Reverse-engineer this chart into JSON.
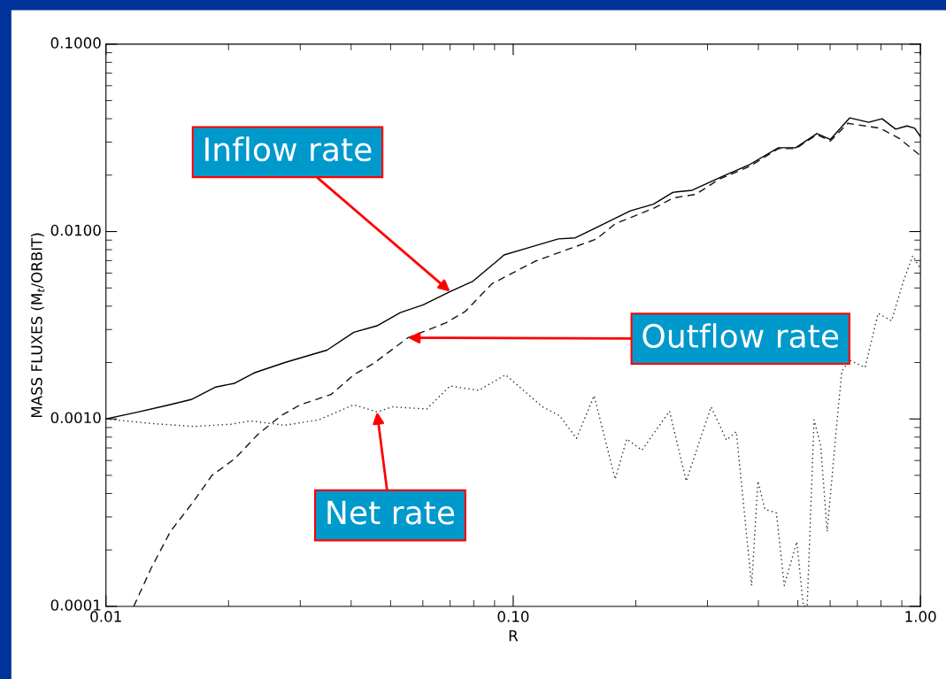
{
  "chart_data": {
    "type": "line",
    "xlabel": "R",
    "ylabel": "MASS FLUXES (M$_{t}$/ORBIT)",
    "log": "xy",
    "grid": false,
    "xlim": [
      0.01,
      1.0
    ],
    "ylim": [
      0.0001,
      0.1
    ],
    "xticks": [
      0.01,
      {
        "value": 0.1,
        "label": "0.10"
      },
      {
        "value": 1.0,
        "label": "1.00"
      }
    ],
    "yticks": [
      {
        "value": 0.0001,
        "label": "0.0001"
      },
      {
        "value": 0.001,
        "label": "0.0010"
      },
      {
        "value": 0.01,
        "label": "0.0100"
      },
      {
        "value": 0.1,
        "label": "0.1000"
      }
    ],
    "series": [
      {
        "color": "#000000",
        "line_style": "solid",
        "x": [
          0.01,
          0.0118,
          0.0141,
          0.0162,
          0.0186,
          0.0207,
          0.0231,
          0.0275,
          0.0349,
          0.0406,
          0.0463,
          0.0528,
          0.0601,
          0.07,
          0.0797,
          0.0927,
          0.0949,
          0.108,
          0.129,
          0.142,
          0.16,
          0.194,
          0.221,
          0.247,
          0.275,
          0.327,
          0.381,
          0.448,
          0.494,
          0.557,
          0.601,
          0.67,
          0.746,
          0.805,
          0.869,
          0.927,
          0.968,
          1.0
        ],
        "values": [
          0.001,
          0.00108,
          0.00118,
          0.00127,
          0.00148,
          0.00155,
          0.00176,
          0.002,
          0.00233,
          0.0029,
          0.00314,
          0.00369,
          0.00406,
          0.00478,
          0.00544,
          0.00716,
          0.0075,
          0.00815,
          0.00913,
          0.00925,
          0.0105,
          0.0129,
          0.014,
          0.0162,
          0.0166,
          0.0197,
          0.0228,
          0.028,
          0.028,
          0.0333,
          0.031,
          0.0404,
          0.0383,
          0.04,
          0.0352,
          0.0366,
          0.0356,
          0.0321
        ]
      },
      {
        "color": "#151515",
        "line_style": "dashed",
        "x": [
          0.0117,
          0.0129,
          0.0144,
          0.0164,
          0.0182,
          0.0207,
          0.0236,
          0.0269,
          0.03,
          0.0357,
          0.0406,
          0.0453,
          0.0551,
          0.0684,
          0.0762,
          0.0887,
          0.103,
          0.113,
          0.16,
          0.178,
          0.221,
          0.247,
          0.281,
          0.32,
          0.381,
          0.448,
          0.494,
          0.557,
          0.601,
          0.663,
          0.731,
          0.796,
          0.887,
          1.0
        ],
        "values": [
          0.0001,
          0.000159,
          0.000251,
          0.000362,
          0.000499,
          0.000613,
          0.000826,
          0.00104,
          0.00119,
          0.00135,
          0.00172,
          0.00197,
          0.00271,
          0.00326,
          0.00374,
          0.00527,
          0.00624,
          0.00693,
          0.00912,
          0.011,
          0.0133,
          0.0151,
          0.0158,
          0.019,
          0.0223,
          0.0277,
          0.0277,
          0.0329,
          0.0304,
          0.0378,
          0.0366,
          0.0356,
          0.0314,
          0.0254
        ]
      },
      {
        "color": "#2a2a2a",
        "line_style": "dotted",
        "x": [
          0.01,
          0.0129,
          0.0164,
          0.0203,
          0.0226,
          0.0275,
          0.0334,
          0.0406,
          0.0463,
          0.0505,
          0.0613,
          0.07,
          0.0822,
          0.0958,
          0.118,
          0.13,
          0.143,
          0.158,
          0.178,
          0.19,
          0.207,
          0.242,
          0.266,
          0.306,
          0.334,
          0.353,
          0.385,
          0.399,
          0.415,
          0.443,
          0.463,
          0.497,
          0.516,
          0.527,
          0.548,
          0.569,
          0.59,
          0.621,
          0.641,
          0.67,
          0.731,
          0.787,
          0.849,
          0.907,
          0.957,
          1.0
        ],
        "values": [
          0.001,
          0.000946,
          0.000912,
          0.000937,
          0.000977,
          0.000925,
          0.000991,
          0.00119,
          0.00109,
          0.00116,
          0.00113,
          0.0015,
          0.00142,
          0.00172,
          0.00116,
          0.00104,
          0.000788,
          0.00133,
          0.000477,
          0.000782,
          0.000681,
          0.0011,
          0.000466,
          0.00116,
          0.000771,
          0.000855,
          0.000129,
          0.000466,
          0.00033,
          0.000315,
          0.000129,
          0.000221,
          0.0001,
          0.0001,
          0.00099,
          0.00072,
          0.000251,
          0.000863,
          0.0018,
          0.00206,
          0.00188,
          0.00366,
          0.00334,
          0.00539,
          0.00743,
          0.00632
        ]
      }
    ],
    "annotations": [
      {
        "text": "Inflow rate",
        "x": 0.07,
        "y": 0.00478
      },
      {
        "text": "Outflow rate",
        "x": 0.0551,
        "y": 0.00271
      },
      {
        "text": "Net rate",
        "x": 0.0463,
        "y": 0.00109
      }
    ]
  }
}
